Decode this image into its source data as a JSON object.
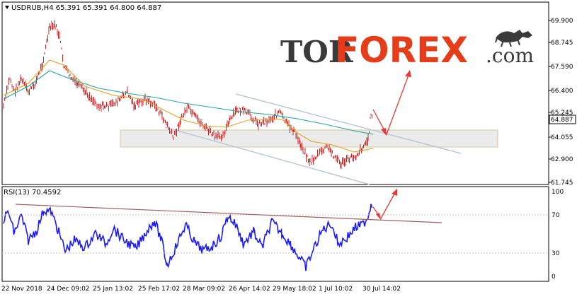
{
  "main_panel": {
    "header": "USDRUB,H4  65.391 65.391 64.800 64.887",
    "price_axis_labels": [
      "69.900",
      "68.745",
      "67.590",
      "66.400",
      "65.245",
      "64.055",
      "62.900",
      "61.745"
    ],
    "current_price_label": "64.887"
  },
  "rsi_panel": {
    "header": "RSI(13) 70.4592",
    "axis_labels": [
      "100",
      "70",
      "30",
      "0"
    ]
  },
  "time_axis_labels": [
    "22 Nov 2018",
    "24 Dec 09:02",
    "25 Jan 13:02",
    "25 Feb 17:02",
    "28 Mar 09:02",
    "26 Apr 14:02",
    "29 May 18:02",
    "1 Jul 10:02",
    "30 Jul 14:02"
  ],
  "logo": {
    "tor": "TOR",
    "forex": "FOREX",
    "com": ".com"
  },
  "colors": {
    "candles": "#c62828",
    "ma_slow": "#26a69a",
    "ma_fast": "#e6a020",
    "rsi_line": "#1a1aff",
    "support_zone": "#e8e8e8",
    "channel": "#b0c4d8",
    "arrow": "#e53935",
    "rsi_trendline": "#a05a5a",
    "logo_dark": "#3a3a3a",
    "logo_accent": "#e53d1a"
  }
}
